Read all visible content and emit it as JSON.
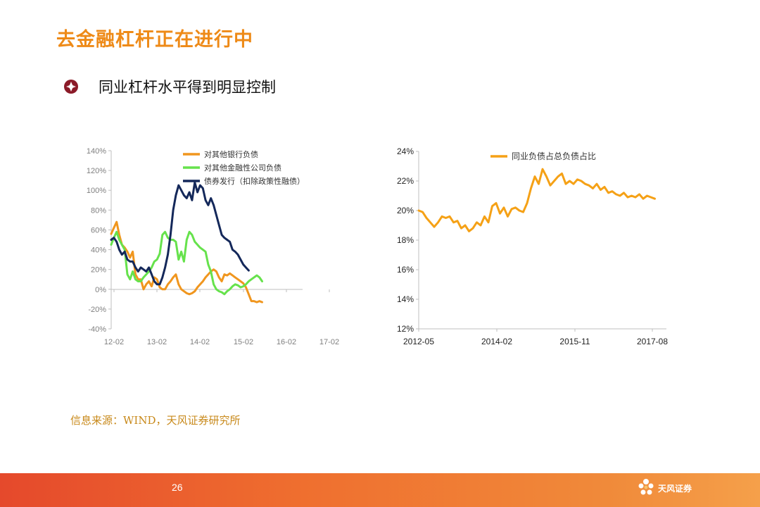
{
  "slide": {
    "title": "去金融杠杆正在进行中",
    "subtitle": "同业杠杆水平得到明显控制",
    "source": "信息来源：WIND，天风证券研究所",
    "page_number": "26",
    "logo_text": "天风证券",
    "colors": {
      "title": "#ee8a17",
      "source": "#c8891a",
      "footer": "#ef6f2f"
    }
  },
  "chart_data": [
    {
      "type": "line",
      "xlabel": "",
      "ylabel": "",
      "x_ticks": [
        "12-02",
        "13-02",
        "14-02",
        "15-02",
        "16-02",
        "17-02"
      ],
      "y_ticks": [
        "140%",
        "120%",
        "100%",
        "80%",
        "60%",
        "40%",
        "20%",
        "0%",
        "-20%",
        "-40%"
      ],
      "ylim": [
        -40,
        140
      ],
      "xlim": [
        0,
        71
      ],
      "legend_position": "top-center",
      "grid": false,
      "series": [
        {
          "name": "对其他银行负债",
          "color": "#f0961e",
          "points": [
            [
              0,
              56
            ],
            [
              1,
              62
            ],
            [
              2,
              68
            ],
            [
              3,
              55
            ],
            [
              4,
              45
            ],
            [
              5,
              42
            ],
            [
              6,
              38
            ],
            [
              7,
              32
            ],
            [
              8,
              38
            ],
            [
              9,
              15
            ],
            [
              10,
              10
            ],
            [
              11,
              10
            ],
            [
              12,
              0
            ],
            [
              13,
              5
            ],
            [
              14,
              8
            ],
            [
              15,
              3
            ],
            [
              16,
              12
            ],
            [
              17,
              10
            ],
            [
              18,
              2
            ],
            [
              19,
              0
            ],
            [
              20,
              0
            ],
            [
              21,
              5
            ],
            [
              22,
              8
            ],
            [
              23,
              12
            ],
            [
              24,
              15
            ],
            [
              25,
              5
            ],
            [
              26,
              0
            ],
            [
              27,
              -2
            ],
            [
              28,
              -4
            ],
            [
              29,
              -5
            ],
            [
              30,
              -4
            ],
            [
              31,
              -2
            ],
            [
              32,
              2
            ],
            [
              33,
              5
            ],
            [
              34,
              8
            ],
            [
              35,
              12
            ],
            [
              36,
              15
            ],
            [
              37,
              18
            ],
            [
              38,
              20
            ],
            [
              39,
              18
            ],
            [
              40,
              12
            ],
            [
              41,
              8
            ],
            [
              42,
              15
            ],
            [
              43,
              14
            ],
            [
              44,
              16
            ],
            [
              45,
              14
            ],
            [
              46,
              12
            ],
            [
              47,
              10
            ],
            [
              48,
              8
            ],
            [
              49,
              6
            ],
            [
              50,
              2
            ],
            [
              51,
              -5
            ],
            [
              52,
              -12
            ],
            [
              53,
              -12
            ],
            [
              54,
              -13
            ],
            [
              55,
              -12
            ],
            [
              56,
              -13
            ]
          ]
        },
        {
          "name": "对其他金融性公司负债",
          "color": "#66e24c",
          "points": [
            [
              0,
              45
            ],
            [
              1,
              52
            ],
            [
              2,
              58
            ],
            [
              3,
              50
            ],
            [
              4,
              45
            ],
            [
              5,
              40
            ],
            [
              6,
              15
            ],
            [
              7,
              10
            ],
            [
              8,
              18
            ],
            [
              9,
              10
            ],
            [
              10,
              8
            ],
            [
              11,
              8
            ],
            [
              12,
              12
            ],
            [
              13,
              15
            ],
            [
              14,
              18
            ],
            [
              15,
              22
            ],
            [
              16,
              28
            ],
            [
              17,
              30
            ],
            [
              18,
              36
            ],
            [
              19,
              55
            ],
            [
              20,
              58
            ],
            [
              21,
              52
            ],
            [
              22,
              50
            ],
            [
              23,
              50
            ],
            [
              24,
              48
            ],
            [
              25,
              30
            ],
            [
              26,
              38
            ],
            [
              27,
              28
            ],
            [
              28,
              50
            ],
            [
              29,
              58
            ],
            [
              30,
              55
            ],
            [
              31,
              48
            ],
            [
              32,
              45
            ],
            [
              33,
              42
            ],
            [
              34,
              40
            ],
            [
              35,
              38
            ],
            [
              36,
              25
            ],
            [
              37,
              18
            ],
            [
              38,
              5
            ],
            [
              39,
              0
            ],
            [
              40,
              -2
            ],
            [
              41,
              -3
            ],
            [
              42,
              -5
            ],
            [
              43,
              -2
            ],
            [
              44,
              0
            ],
            [
              45,
              3
            ],
            [
              46,
              5
            ],
            [
              47,
              4
            ],
            [
              48,
              2
            ],
            [
              49,
              3
            ],
            [
              50,
              5
            ],
            [
              51,
              8
            ],
            [
              52,
              10
            ],
            [
              53,
              12
            ],
            [
              54,
              14
            ],
            [
              55,
              12
            ],
            [
              56,
              8
            ]
          ]
        },
        {
          "name": "债券发行（扣除政策性融债）",
          "color": "#14285a",
          "points": [
            [
              0,
              50
            ],
            [
              1,
              52
            ],
            [
              2,
              48
            ],
            [
              3,
              40
            ],
            [
              4,
              35
            ],
            [
              5,
              38
            ],
            [
              6,
              30
            ],
            [
              7,
              28
            ],
            [
              8,
              28
            ],
            [
              9,
              22
            ],
            [
              10,
              18
            ],
            [
              11,
              22
            ],
            [
              12,
              20
            ],
            [
              13,
              18
            ],
            [
              14,
              22
            ],
            [
              15,
              15
            ],
            [
              16,
              8
            ],
            [
              17,
              5
            ],
            [
              18,
              5
            ],
            [
              19,
              12
            ],
            [
              20,
              22
            ],
            [
              21,
              35
            ],
            [
              22,
              55
            ],
            [
              23,
              80
            ],
            [
              24,
              95
            ],
            [
              25,
              105
            ],
            [
              26,
              100
            ],
            [
              27,
              95
            ],
            [
              28,
              92
            ],
            [
              29,
              98
            ],
            [
              30,
              90
            ],
            [
              31,
              108
            ],
            [
              32,
              98
            ],
            [
              33,
              105
            ],
            [
              34,
              102
            ],
            [
              35,
              90
            ],
            [
              36,
              85
            ],
            [
              37,
              92
            ],
            [
              38,
              85
            ],
            [
              39,
              75
            ],
            [
              40,
              65
            ],
            [
              41,
              55
            ],
            [
              42,
              52
            ],
            [
              43,
              50
            ],
            [
              44,
              48
            ],
            [
              45,
              40
            ],
            [
              46,
              38
            ],
            [
              47,
              35
            ],
            [
              48,
              30
            ],
            [
              49,
              25
            ],
            [
              50,
              22
            ],
            [
              51,
              19
            ]
          ]
        }
      ]
    },
    {
      "type": "line",
      "xlabel": "",
      "ylabel": "",
      "x_ticks": [
        "2012-05",
        "2014-02",
        "2015-11",
        "2017-08"
      ],
      "y_ticks": [
        "24%",
        "22%",
        "20%",
        "18%",
        "16%",
        "14%",
        "12%"
      ],
      "ylim": [
        12,
        24
      ],
      "xlim": [
        0,
        64
      ],
      "legend_position": "top-left",
      "grid": false,
      "series": [
        {
          "name": "同业负债占总负债占比",
          "color": "#f5a116",
          "points": [
            [
              0,
              20.0
            ],
            [
              1,
              19.9
            ],
            [
              2,
              19.5
            ],
            [
              3,
              19.2
            ],
            [
              4,
              18.9
            ],
            [
              5,
              19.2
            ],
            [
              6,
              19.6
            ],
            [
              7,
              19.5
            ],
            [
              8,
              19.6
            ],
            [
              9,
              19.2
            ],
            [
              10,
              19.3
            ],
            [
              11,
              18.8
            ],
            [
              12,
              19.0
            ],
            [
              13,
              18.6
            ],
            [
              14,
              18.8
            ],
            [
              15,
              19.2
            ],
            [
              16,
              19.0
            ],
            [
              17,
              19.6
            ],
            [
              18,
              19.2
            ],
            [
              19,
              20.3
            ],
            [
              20,
              20.5
            ],
            [
              21,
              19.8
            ],
            [
              22,
              20.2
            ],
            [
              23,
              19.6
            ],
            [
              24,
              20.1
            ],
            [
              25,
              20.2
            ],
            [
              26,
              20.0
            ],
            [
              27,
              19.9
            ],
            [
              28,
              20.5
            ],
            [
              29,
              21.5
            ],
            [
              30,
              22.3
            ],
            [
              31,
              21.8
            ],
            [
              32,
              22.8
            ],
            [
              33,
              22.3
            ],
            [
              34,
              21.7
            ],
            [
              35,
              22.0
            ],
            [
              36,
              22.3
            ],
            [
              37,
              22.5
            ],
            [
              38,
              21.8
            ],
            [
              39,
              22.0
            ],
            [
              40,
              21.8
            ],
            [
              41,
              22.1
            ],
            [
              42,
              22.0
            ],
            [
              43,
              21.8
            ],
            [
              44,
              21.7
            ],
            [
              45,
              21.5
            ],
            [
              46,
              21.8
            ],
            [
              47,
              21.4
            ],
            [
              48,
              21.6
            ],
            [
              49,
              21.2
            ],
            [
              50,
              21.3
            ],
            [
              51,
              21.1
            ],
            [
              52,
              21.0
            ],
            [
              53,
              21.2
            ],
            [
              54,
              20.9
            ],
            [
              55,
              21.0
            ],
            [
              56,
              20.9
            ],
            [
              57,
              21.1
            ],
            [
              58,
              20.8
            ],
            [
              59,
              21.0
            ],
            [
              60,
              20.9
            ],
            [
              61,
              20.8
            ]
          ]
        }
      ]
    }
  ]
}
